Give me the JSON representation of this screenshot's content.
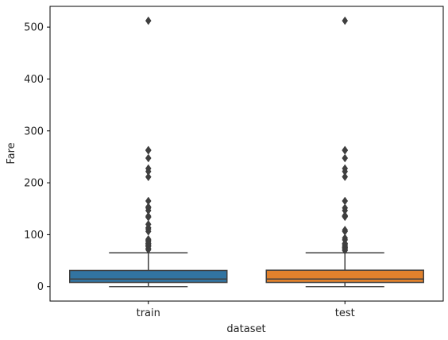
{
  "chart_data": {
    "type": "box",
    "xlabel": "dataset",
    "ylabel": "Fare",
    "categories": [
      "train",
      "test"
    ],
    "ylim": [
      -28,
      540
    ],
    "yticks": [
      0,
      100,
      200,
      300,
      400,
      500
    ],
    "grid": false,
    "legend": "none",
    "colors": [
      "#3274a1",
      "#e1812c"
    ],
    "edge_color": "#3f3f3f",
    "boxes": [
      {
        "category": "train",
        "whisker_low": 0,
        "q1": 7.9,
        "median": 14.5,
        "q3": 31,
        "whisker_high": 65,
        "outliers": [
          71,
          73.5,
          77.3,
          78.9,
          79.6,
          82.2,
          83.2,
          86.5,
          89.1,
          91.1,
          106.4,
          110.9,
          113.3,
          120,
          133.7,
          135.6,
          146.5,
          151.6,
          153.5,
          164.9,
          211.3,
          221.8,
          227.5,
          247.5,
          262.4,
          263,
          512.3
        ]
      },
      {
        "category": "test",
        "whisker_low": 0,
        "q1": 7.9,
        "median": 14.5,
        "q3": 31.5,
        "whisker_high": 65,
        "outliers": [
          69.5,
          71.3,
          73.5,
          75.3,
          76.3,
          78.9,
          81.9,
          83.2,
          90,
          93.5,
          106.4,
          108.9,
          134.5,
          135.6,
          136.8,
          146.5,
          151.6,
          164.9,
          211.5,
          221.8,
          227.5,
          247.5,
          262.4,
          263,
          512.3
        ]
      }
    ]
  }
}
